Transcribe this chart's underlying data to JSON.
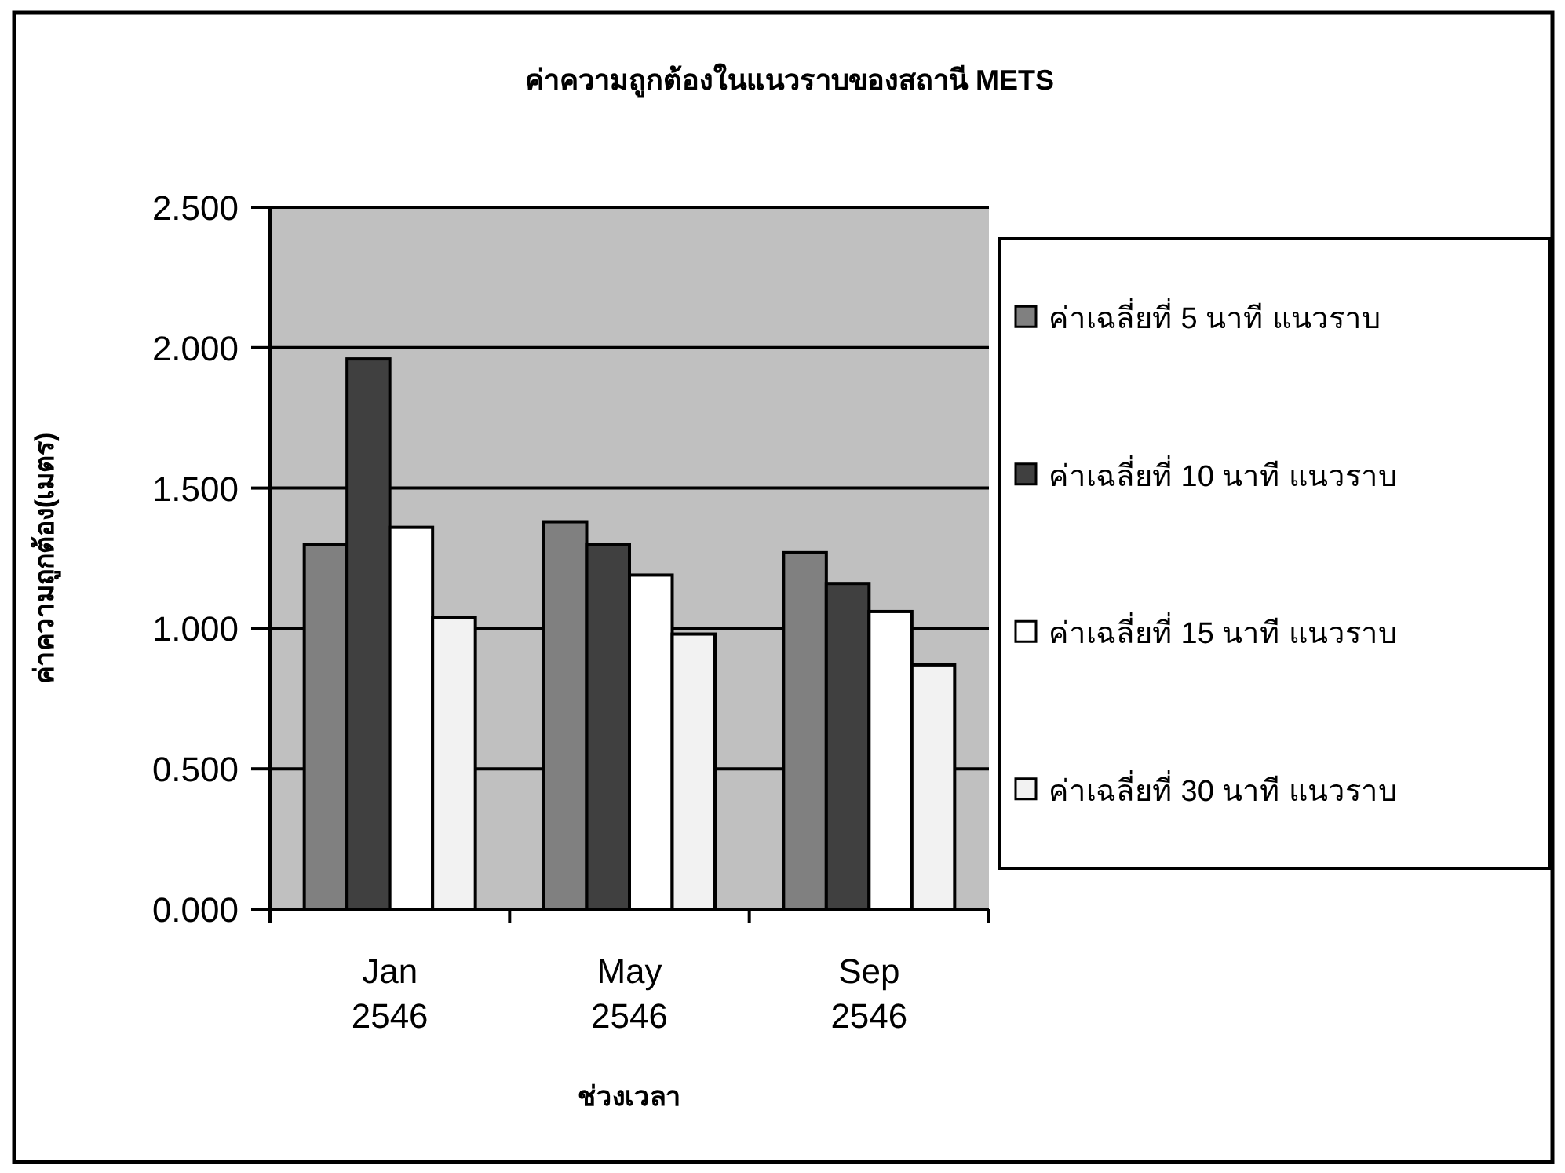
{
  "chart_data": {
    "type": "bar",
    "title": "ค่าความถูกต้องในแนวราบของสถานี METS",
    "xlabel": "ช่วงเวลา",
    "ylabel": "ค่าความถูกต้อง(เมตร)",
    "categories": [
      "Jan\n2546",
      "May\n2546",
      "Sep\n2546"
    ],
    "series": [
      {
        "name": "ค่าเฉลี่ยที่ 5 นาที แนวราบ",
        "color": "#808080",
        "values": [
          1.3,
          1.38,
          1.27
        ]
      },
      {
        "name": "ค่าเฉลี่ยที่ 10 นาที แนวราบ",
        "color": "#404040",
        "values": [
          1.96,
          1.3,
          1.16
        ]
      },
      {
        "name": "ค่าเฉลี่ยที่ 15 นาที แนวราบ",
        "color": "#ffffff",
        "values": [
          1.36,
          1.19,
          1.06
        ]
      },
      {
        "name": "ค่าเฉลี่ยที่ 30 นาที แนวราบ",
        "color": "#f2f2f2",
        "values": [
          1.04,
          0.98,
          0.87
        ]
      }
    ],
    "ylim": [
      0,
      2.5
    ],
    "yticks": [
      {
        "value": 0,
        "label": "0.000"
      },
      {
        "value": 0.5,
        "label": "0.500"
      },
      {
        "value": 1,
        "label": "1.000"
      },
      {
        "value": 1.5,
        "label": "1.500"
      },
      {
        "value": 2,
        "label": "2.000"
      },
      {
        "value": 2.5,
        "label": "2.500"
      }
    ],
    "grid": "y",
    "legend": "right"
  }
}
